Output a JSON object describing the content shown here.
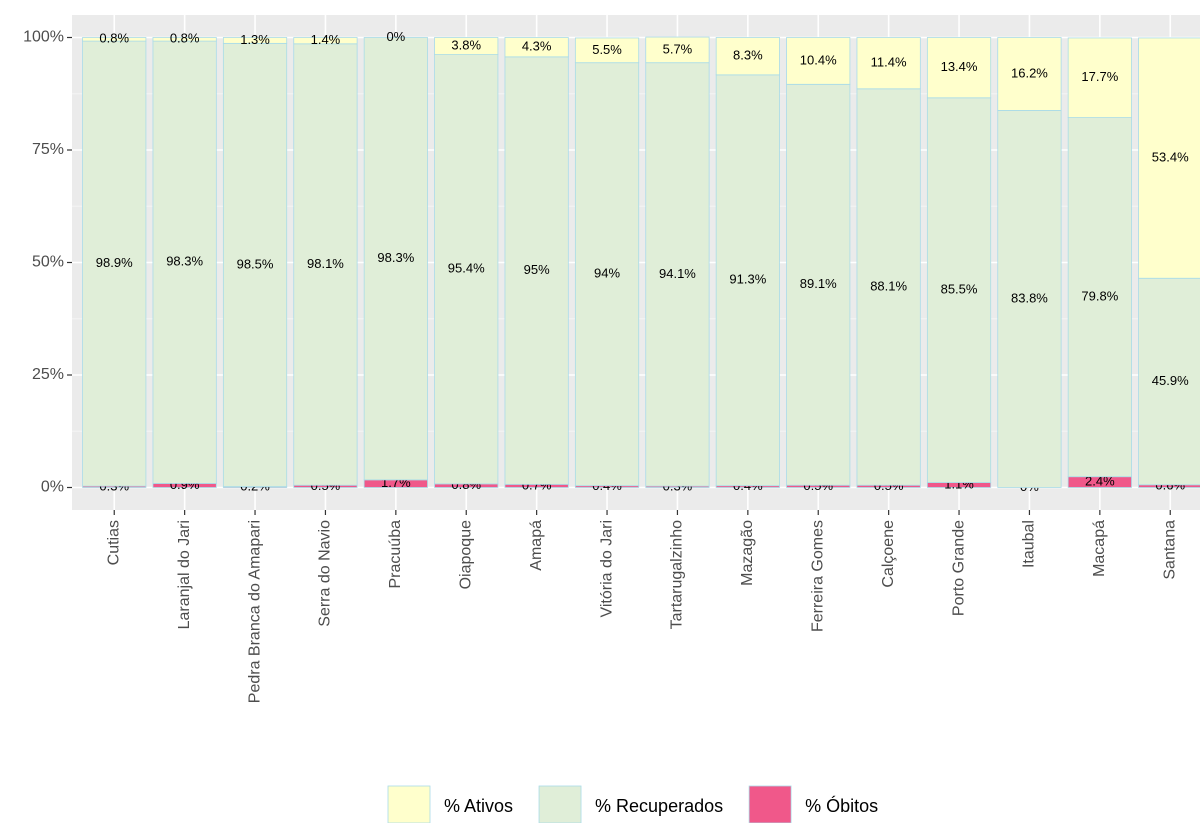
{
  "chart_data": {
    "type": "stacked_bar",
    "categories": [
      "Cutias",
      "Laranjal do Jari",
      "Pedra Branca do Amapari",
      "Serra do Navio",
      "Pracuúba",
      "Oiapoque",
      "Amapá",
      "Vitória do Jari",
      "Tartarugalzinho",
      "Mazagão",
      "Ferreira Gomes",
      "Calçoene",
      "Porto Grande",
      "Itaubal",
      "Macapá",
      "Santana"
    ],
    "series": [
      {
        "name": "% Ativos",
        "color": "#ffffcc",
        "values": [
          0.8,
          0.8,
          1.3,
          1.4,
          0,
          3.8,
          4.3,
          5.5,
          5.7,
          8.3,
          10.4,
          11.4,
          13.4,
          16.2,
          17.7,
          53.4
        ],
        "value_labels": [
          "0.8%",
          "0.8%",
          "1.3%",
          "1.4%",
          "0%",
          "3.8%",
          "4.3%",
          "5.5%",
          "5.7%",
          "8.3%",
          "10.4%",
          "11.4%",
          "13.4%",
          "16.2%",
          "17.7%",
          "53.4%"
        ]
      },
      {
        "name": "% Recuperados",
        "color": "#e0eed8",
        "values": [
          98.9,
          98.3,
          98.5,
          98.1,
          98.3,
          95.4,
          95,
          94,
          94.1,
          91.3,
          89.1,
          88.1,
          85.5,
          83.8,
          79.8,
          45.9
        ],
        "value_labels": [
          "98.9%",
          "98.3%",
          "98.5%",
          "98.1%",
          "98.3%",
          "95.4%",
          "95%",
          "94%",
          "94.1%",
          "91.3%",
          "89.1%",
          "88.1%",
          "85.5%",
          "83.8%",
          "79.8%",
          "45.9%"
        ]
      },
      {
        "name": "% Óbitos",
        "color": "#f0588a",
        "values": [
          0.3,
          0.9,
          0.2,
          0.5,
          1.7,
          0.8,
          0.7,
          0.4,
          0.3,
          0.4,
          0.5,
          0.5,
          1.1,
          0,
          2.4,
          0.6
        ],
        "value_labels": [
          "0.3%",
          "0.9%",
          "0.2%",
          "0.5%",
          "1.7%",
          "0.8%",
          "0.7%",
          "0.4%",
          "0.3%",
          "0.4%",
          "0.5%",
          "0.5%",
          "1.1%",
          "0%",
          "2.4%",
          "0.6%"
        ]
      }
    ],
    "ylim": [
      -5,
      105
    ],
    "yticks": [
      {
        "value": 0,
        "label": "0%"
      },
      {
        "value": 25,
        "label": "25%"
      },
      {
        "value": 50,
        "label": "50%"
      },
      {
        "value": 75,
        "label": "75%"
      },
      {
        "value": 100,
        "label": "100%"
      }
    ],
    "grid": true,
    "legend": "bottom"
  }
}
